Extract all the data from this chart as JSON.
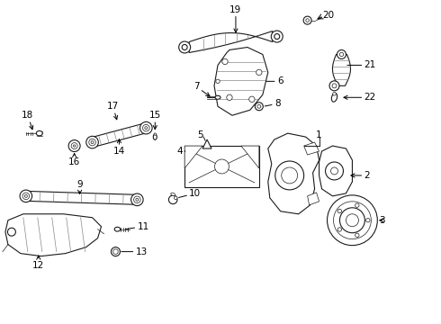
{
  "background_color": "#ffffff",
  "line_color": "#1a1a1a",
  "fig_width": 4.9,
  "fig_height": 3.6,
  "dpi": 100,
  "hatch_color": "#555555",
  "label_fontsize": 7.5
}
